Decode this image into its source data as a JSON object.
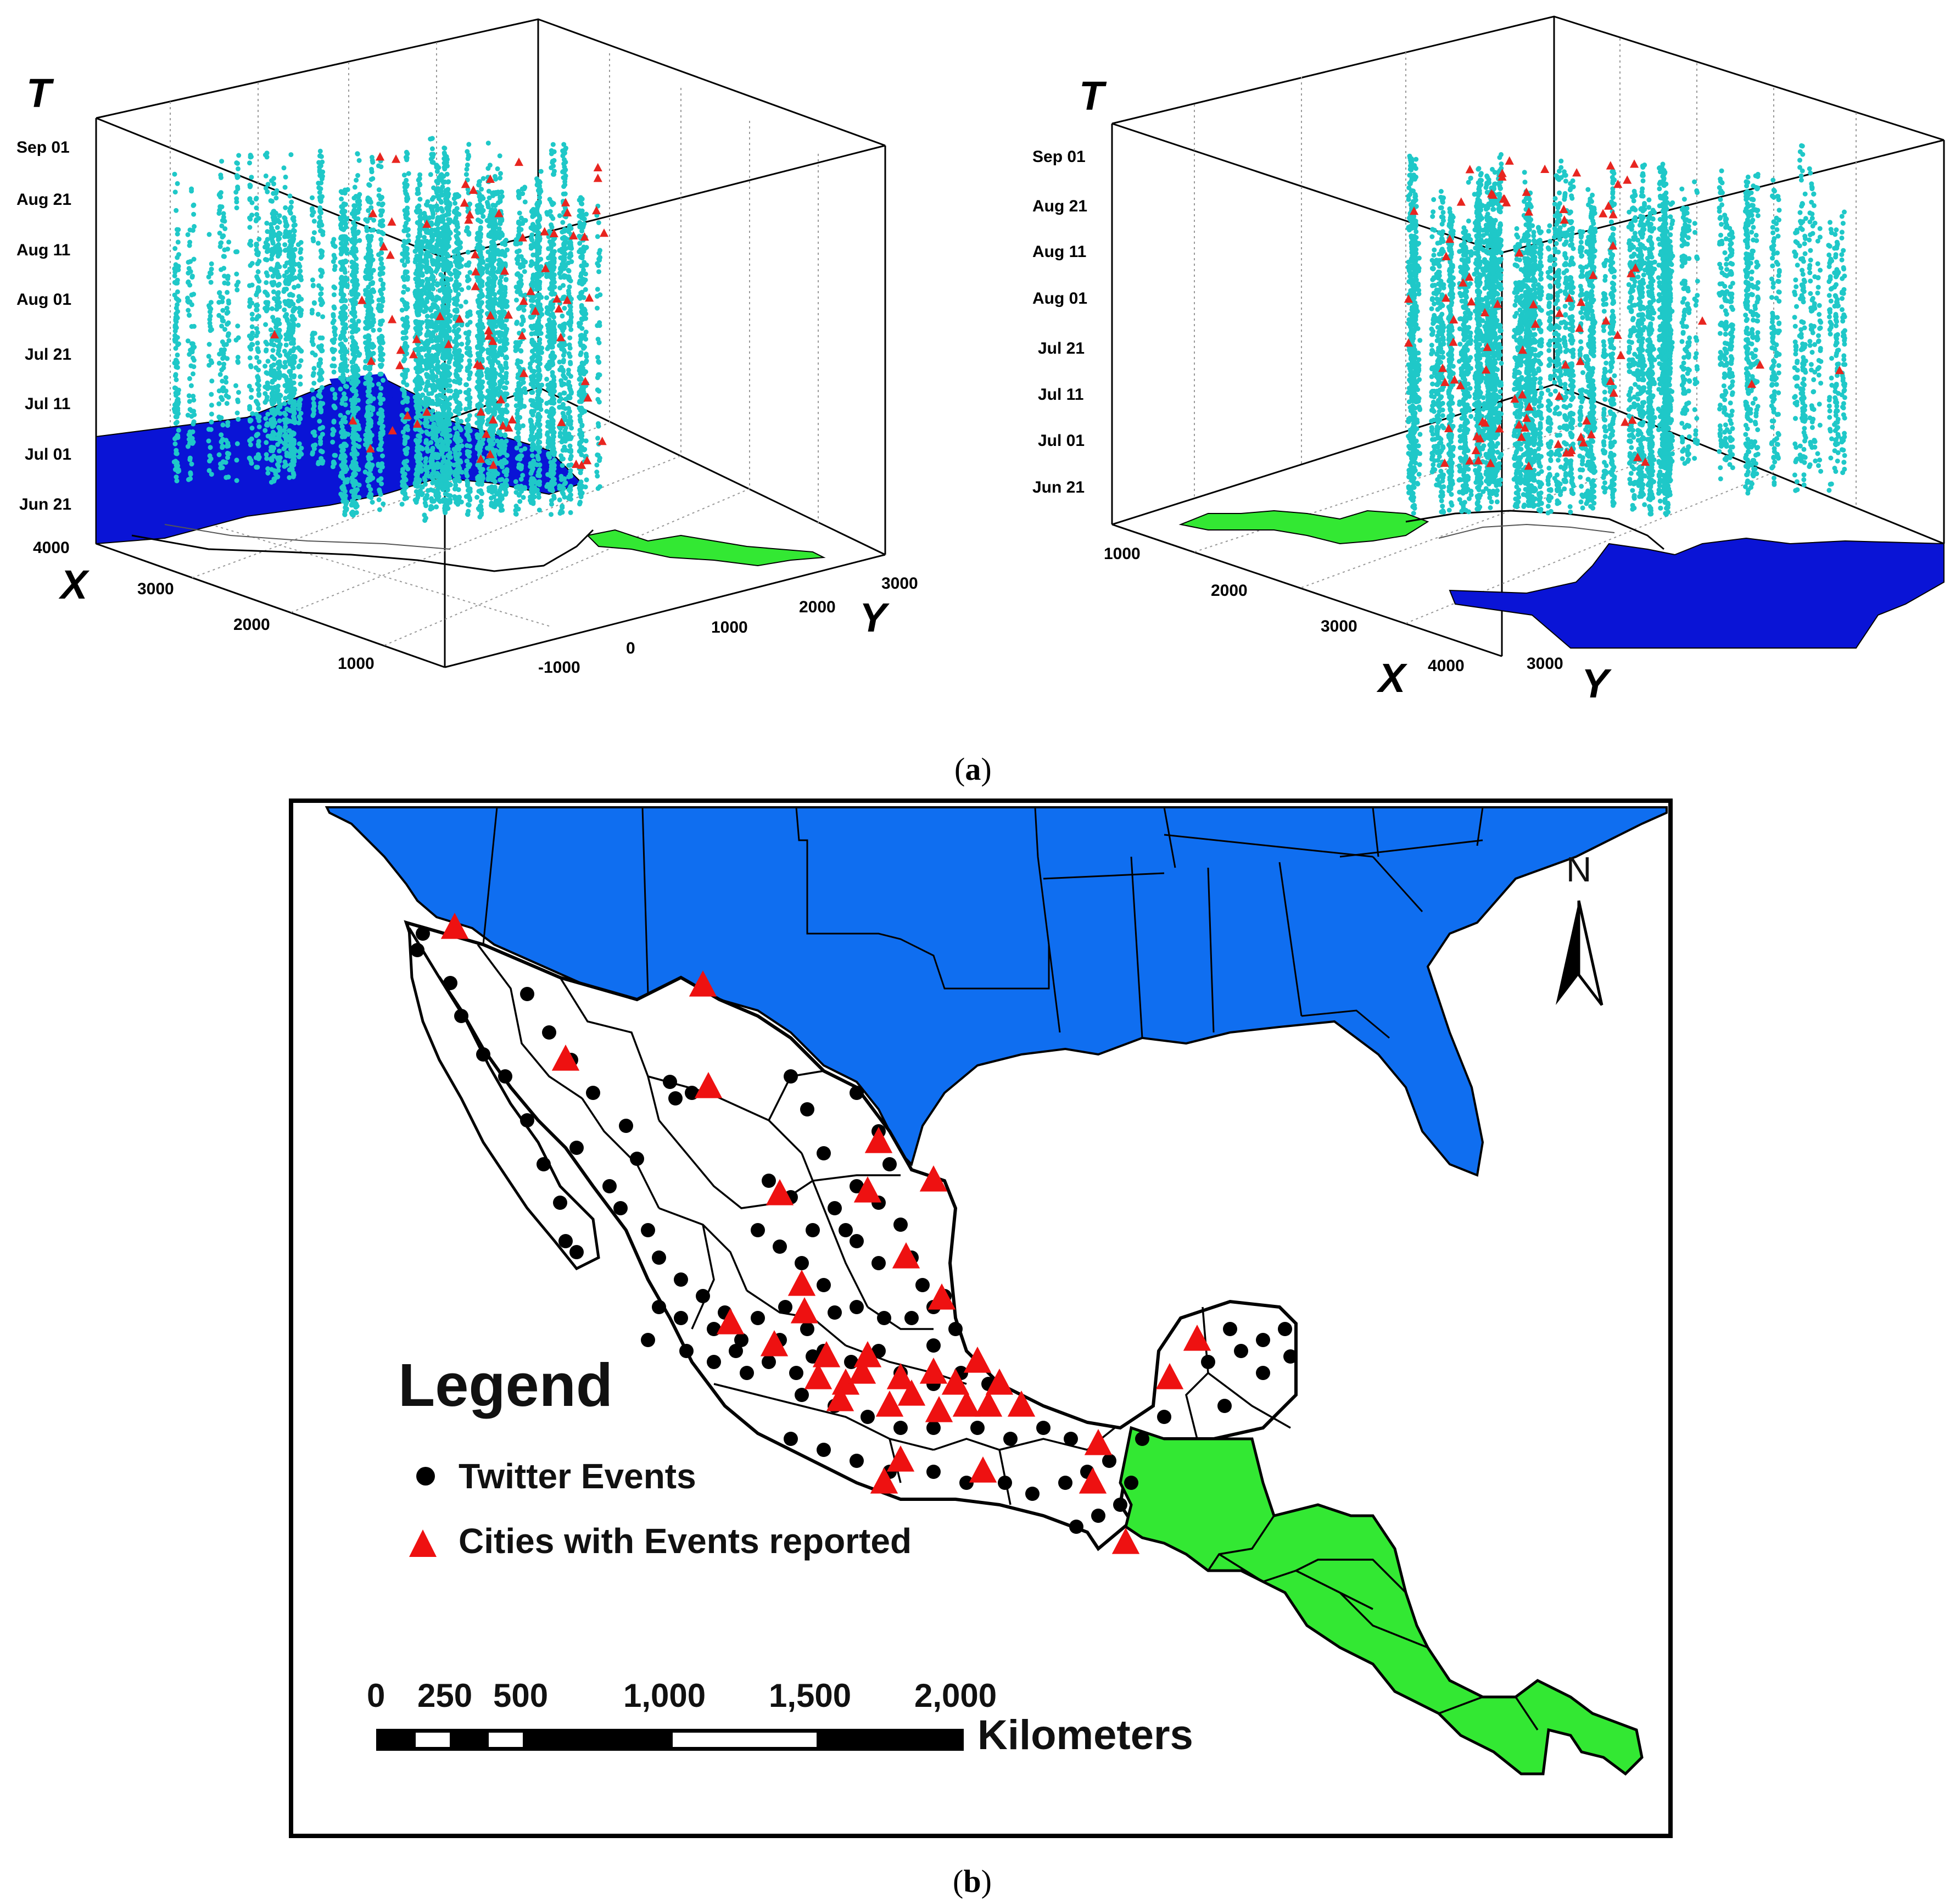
{
  "figure": {
    "caption_a": "a",
    "caption_b": "b"
  },
  "panel_a": {
    "left_plot": {
      "axis_t": "T",
      "axis_x": "X",
      "axis_y": "Y",
      "t_ticks": [
        "Sep 01",
        "Aug 21",
        "Aug 11",
        "Aug 01",
        "Jul 21",
        "Jul 11",
        "Jul 01",
        "Jun 21"
      ],
      "x_ticks": [
        "4000",
        "3000",
        "2000",
        "1000"
      ],
      "y_ticks": [
        "3000",
        "2000",
        "1000",
        "0",
        "-1000"
      ]
    },
    "right_plot": {
      "axis_t": "T",
      "axis_x": "X",
      "axis_y": "Y",
      "t_ticks": [
        "Sep 01",
        "Aug 21",
        "Aug 11",
        "Aug 01",
        "Jul 21",
        "Jul 11",
        "Jul 01",
        "Jun 21"
      ],
      "x_ticks": [
        "1000",
        "2000",
        "3000",
        "4000"
      ],
      "y_ticks": [
        "3000"
      ]
    },
    "colors": {
      "tweets": "#1fc8c8",
      "events": "#e8251f",
      "usa": "#0a14d6",
      "central_america": "#33e833"
    }
  },
  "panel_b": {
    "legend": {
      "title": "Legend",
      "item_tweets": "Twitter Events",
      "item_cities": "Cities with Events reported"
    },
    "north_label": "N",
    "scale_bar": {
      "labels": [
        "0",
        "250",
        "500",
        "1,000",
        "1,500",
        "2,000"
      ],
      "unit": "Kilometers"
    },
    "colors": {
      "usa": "#0f6ef0",
      "central_america": "#33e833",
      "mexico": "#ffffff",
      "tweets": "#000000",
      "cities": "#ee1111"
    }
  }
}
